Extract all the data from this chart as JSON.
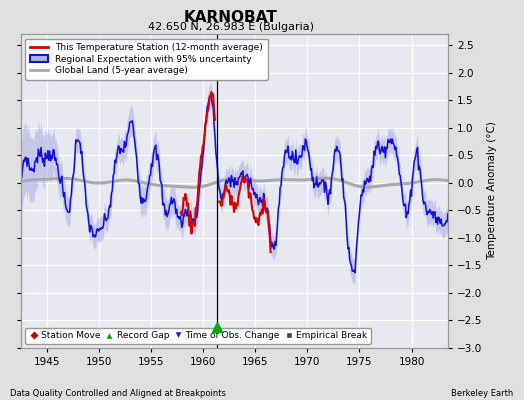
{
  "title": "KARNOBAT",
  "subtitle": "42.650 N, 26.983 E (Bulgaria)",
  "ylabel": "Temperature Anomaly (°C)",
  "xlabel_bottom_left": "Data Quality Controlled and Aligned at Breakpoints",
  "xlabel_bottom_right": "Berkeley Earth",
  "xlim": [
    1942.5,
    1983.5
  ],
  "ylim": [
    -3.0,
    2.7
  ],
  "yticks": [
    -3,
    -2.5,
    -2,
    -1.5,
    -1,
    -0.5,
    0,
    0.5,
    1,
    1.5,
    2,
    2.5
  ],
  "xticks": [
    1945,
    1950,
    1955,
    1960,
    1965,
    1970,
    1975,
    1980
  ],
  "bg_color": "#e0e0e0",
  "plot_bg_color": "#e8e8f0",
  "grid_color": "#ffffff",
  "blue_line_color": "#1010dd",
  "blue_fill_color": "#b0b0e8",
  "red_line_color": "#dd0000",
  "gray_line_color": "#aaaaaa",
  "vertical_line_x": 1961.3,
  "record_gap_x": 1961.3,
  "record_gap_y": -2.62,
  "legend_items": [
    {
      "label": "This Temperature Station (12-month average)",
      "color": "#dd0000",
      "lw": 2
    },
    {
      "label": "Regional Expectation with 95% uncertainty",
      "color": "#1010dd",
      "lw": 2
    },
    {
      "label": "Global Land (5-year average)",
      "color": "#aaaaaa",
      "lw": 2
    }
  ],
  "bottom_legend": [
    {
      "label": "Station Move",
      "color": "#cc0000",
      "marker": "D"
    },
    {
      "label": "Record Gap",
      "color": "#00aa00",
      "marker": "^"
    },
    {
      "label": "Time of Obs. Change",
      "color": "#2222cc",
      "marker": "v"
    },
    {
      "label": "Empirical Break",
      "color": "#444444",
      "marker": "s"
    }
  ]
}
